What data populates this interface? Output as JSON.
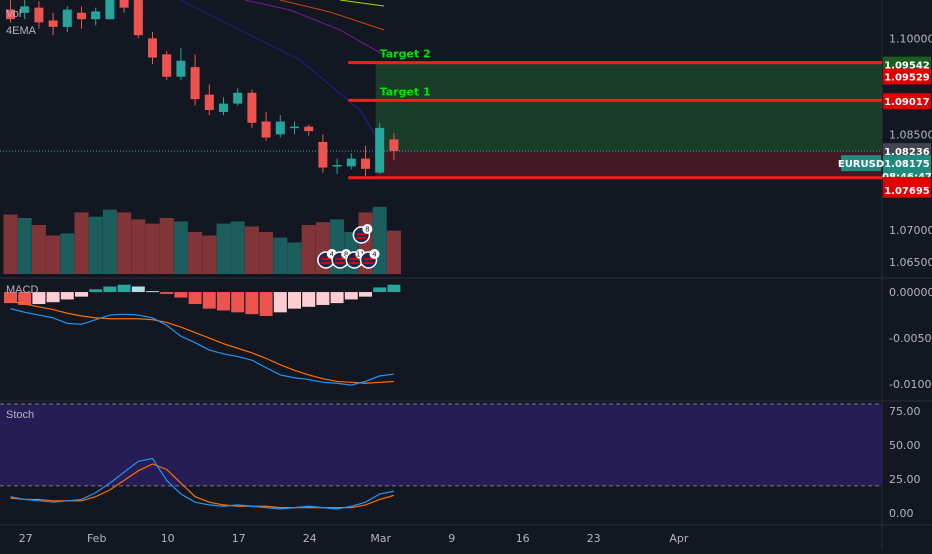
{
  "chart_data": {
    "type": "candlestick",
    "symbol": "EURUSD",
    "indicators": {
      "volume": "Vol",
      "ema": "4EMA",
      "macd": "MACD",
      "stoch": "Stoch"
    },
    "colors": {
      "up": "#26a69a",
      "down": "#ef5350",
      "target": "#00e500",
      "background": "#131722"
    },
    "price_axis": {
      "range": [
        1.063,
        1.106
      ],
      "ticks": [
        "1.10000",
        "1.08500",
        "1.07000",
        "1.06500"
      ]
    },
    "price_tags": [
      {
        "value": 1.09542,
        "label": "1.09542",
        "kind": "target"
      },
      {
        "value": 1.09529,
        "label": "1.09529",
        "kind": "red"
      },
      {
        "value": 1.09017,
        "label": "1.09017",
        "kind": "red"
      },
      {
        "value": 1.08236,
        "label": "1.08236",
        "kind": "gray"
      },
      {
        "value": 1.08175,
        "label": "1.08175",
        "kind": "teal"
      },
      {
        "value": 1.0785,
        "label": "08:46:47",
        "kind": "teal"
      },
      {
        "value": 1.07724,
        "label": "1.07724",
        "kind": "red"
      },
      {
        "value": 1.07695,
        "label": "1.07695",
        "kind": "red"
      }
    ],
    "levels": [
      {
        "name": "Target 2",
        "value": 1.0962
      },
      {
        "name": "Target 1",
        "value": 1.0903
      },
      {
        "name": "",
        "value": 1.0782
      }
    ],
    "position": {
      "entry": 1.0823,
      "stop": 1.0782,
      "target": 1.096
    },
    "last_price": 1.08236,
    "candles": [
      {
        "o": 1.1045,
        "h": 1.106,
        "l": 1.1025,
        "c": 1.103
      },
      {
        "o": 1.104,
        "h": 1.106,
        "l": 1.103,
        "c": 1.105
      },
      {
        "o": 1.1048,
        "h": 1.1058,
        "l": 1.1015,
        "c": 1.1025
      },
      {
        "o": 1.1028,
        "h": 1.104,
        "l": 1.1005,
        "c": 1.1018
      },
      {
        "o": 1.1018,
        "h": 1.105,
        "l": 1.101,
        "c": 1.1045
      },
      {
        "o": 1.104,
        "h": 1.105,
        "l": 1.1015,
        "c": 1.103
      },
      {
        "o": 1.103,
        "h": 1.1048,
        "l": 1.102,
        "c": 1.1042
      },
      {
        "o": 1.103,
        "h": 1.1075,
        "l": 1.103,
        "c": 1.107
      },
      {
        "o": 1.1068,
        "h": 1.108,
        "l": 1.104,
        "c": 1.1048
      },
      {
        "o": 1.1075,
        "h": 1.108,
        "l": 1.1,
        "c": 1.1005
      },
      {
        "o": 1.1,
        "h": 1.101,
        "l": 1.096,
        "c": 1.097
      },
      {
        "o": 1.0975,
        "h": 1.098,
        "l": 1.0935,
        "c": 1.094
      },
      {
        "o": 1.094,
        "h": 1.0985,
        "l": 1.0935,
        "c": 1.0965
      },
      {
        "o": 1.0955,
        "h": 1.0975,
        "l": 1.0895,
        "c": 1.0905
      },
      {
        "o": 1.0912,
        "h": 1.0928,
        "l": 1.088,
        "c": 1.0888
      },
      {
        "o": 1.0885,
        "h": 1.0908,
        "l": 1.088,
        "c": 1.0898
      },
      {
        "o": 1.0898,
        "h": 1.0922,
        "l": 1.0895,
        "c": 1.0915
      },
      {
        "o": 1.0915,
        "h": 1.092,
        "l": 1.086,
        "c": 1.0868
      },
      {
        "o": 1.087,
        "h": 1.0885,
        "l": 1.084,
        "c": 1.0845
      },
      {
        "o": 1.085,
        "h": 1.088,
        "l": 1.0845,
        "c": 1.087
      },
      {
        "o": 1.086,
        "h": 1.087,
        "l": 1.085,
        "c": 1.0862
      },
      {
        "o": 1.0862,
        "h": 1.0865,
        "l": 1.0848,
        "c": 1.0855
      },
      {
        "o": 1.0838,
        "h": 1.085,
        "l": 1.079,
        "c": 1.0798
      },
      {
        "o": 1.08,
        "h": 1.0812,
        "l": 1.0788,
        "c": 1.0802
      },
      {
        "o": 1.08,
        "h": 1.082,
        "l": 1.0795,
        "c": 1.0812
      },
      {
        "o": 1.0812,
        "h": 1.0832,
        "l": 1.0784,
        "c": 1.0796
      },
      {
        "o": 1.079,
        "h": 1.0868,
        "l": 1.0788,
        "c": 1.086
      },
      {
        "o": 1.0842,
        "h": 1.0852,
        "l": 1.081,
        "c": 1.0824
      }
    ],
    "volume": [
      0.85,
      0.8,
      0.7,
      0.55,
      0.58,
      0.88,
      0.82,
      0.92,
      0.88,
      0.78,
      0.72,
      0.8,
      0.75,
      0.6,
      0.55,
      0.72,
      0.75,
      0.68,
      0.6,
      0.52,
      0.45,
      0.7,
      0.74,
      0.78,
      0.6,
      0.88,
      0.96,
      0.62
    ],
    "macd": {
      "yrange": [
        -0.0115,
        0.0012
      ],
      "ticks": [
        "0.00000",
        "-0.00500",
        "-0.01000"
      ],
      "hist": [
        -0.0012,
        -0.0014,
        -0.0013,
        -0.0011,
        -0.0008,
        -0.0005,
        0.0003,
        0.0006,
        0.0008,
        0.0006,
        0.0001,
        -0.0002,
        -0.0006,
        -0.0013,
        -0.0018,
        -0.002,
        -0.0022,
        -0.0024,
        -0.0026,
        -0.0022,
        -0.0018,
        -0.0016,
        -0.0014,
        -0.0012,
        -0.0008,
        -0.0005,
        0.0005,
        0.0008
      ],
      "macd_line": [
        -0.0018,
        -0.0022,
        -0.0025,
        -0.0028,
        -0.0034,
        -0.0035,
        -0.003,
        -0.0025,
        -0.0024,
        -0.0025,
        -0.0028,
        -0.0036,
        -0.0048,
        -0.0055,
        -0.0063,
        -0.0067,
        -0.007,
        -0.0074,
        -0.0082,
        -0.009,
        -0.0093,
        -0.0095,
        -0.0098,
        -0.0099,
        -0.0101,
        -0.0097,
        -0.0091,
        -0.0089
      ],
      "signal_line": [
        -0.001,
        -0.0013,
        -0.0016,
        -0.0019,
        -0.0023,
        -0.0026,
        -0.0028,
        -0.0029,
        -0.0029,
        -0.0029,
        -0.003,
        -0.0033,
        -0.0038,
        -0.0044,
        -0.005,
        -0.0056,
        -0.0061,
        -0.0066,
        -0.0072,
        -0.0079,
        -0.0085,
        -0.009,
        -0.0094,
        -0.0097,
        -0.0098,
        -0.0099,
        -0.0098,
        -0.0097
      ],
      "colors": {
        "hist_up": "#26a69a",
        "hist_up_fading": "#b2dfdb",
        "hist_down": "#ef5350",
        "hist_down_fading": "#ffcdd2",
        "macd_line": "#2196f3",
        "signal_line": "#ff6d00"
      }
    },
    "stoch": {
      "yrange": [
        -8,
        80
      ],
      "ticks": [
        "75.00",
        "50.00",
        "25.00",
        "0.00"
      ],
      "bands": [
        80,
        20
      ],
      "k": [
        12,
        10,
        9,
        8,
        9,
        10,
        15,
        22,
        30,
        38,
        40,
        24,
        14,
        8,
        6,
        5,
        6,
        5,
        4,
        3,
        4,
        5,
        4,
        3,
        5,
        8,
        14,
        16
      ],
      "d": [
        11,
        10,
        10,
        9,
        9,
        9,
        12,
        17,
        24,
        31,
        36,
        32,
        22,
        12,
        8,
        6,
        5,
        5,
        5,
        4,
        4,
        4,
        4,
        4,
        4,
        6,
        10,
        13
      ],
      "colors": {
        "k": "#2196f3",
        "d": "#ff6d00",
        "band_fill": "#2a1e5c"
      }
    },
    "time_axis": {
      "labels": [
        {
          "text": "27",
          "slot": 1
        },
        {
          "text": "Feb",
          "slot": 6
        },
        {
          "text": "10",
          "slot": 11
        },
        {
          "text": "17",
          "slot": 16
        },
        {
          "text": "24",
          "slot": 21
        },
        {
          "text": "Mar",
          "slot": 26
        },
        {
          "text": "9",
          "slot": 31
        },
        {
          "text": "16",
          "slot": 36
        },
        {
          "text": "23",
          "slot": 41
        },
        {
          "text": "Apr",
          "slot": 47
        }
      ]
    },
    "events": [
      {
        "label": "8",
        "slot": 24.5,
        "row": "upper"
      },
      {
        "label": "4",
        "slot": 22.0,
        "row": "lower"
      },
      {
        "label": "8",
        "slot": 23.0,
        "row": "lower"
      },
      {
        "label": "11",
        "slot": 24.0,
        "row": "lower"
      },
      {
        "label": "4",
        "slot": 25.0,
        "row": "lower"
      }
    ]
  }
}
